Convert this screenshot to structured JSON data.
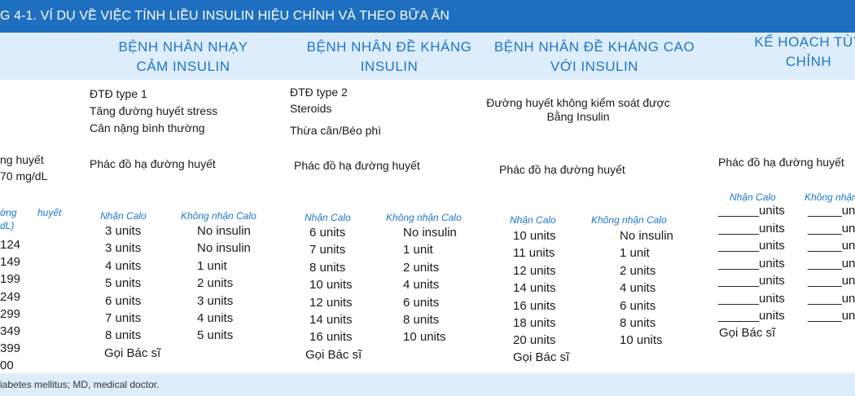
{
  "title": "G 4-1.   VÍ DỤ VỀ VIỆC TÍNH LIỀU INSULIN HIỆU CHỈNH VÀ THEO BỮA ĂN",
  "headers": {
    "sensitive": [
      "BỆNH NHÂN NHẠY",
      "CẢM INSULIN"
    ],
    "resistant": [
      "BỆNH NHÂN ĐỀ KHÁNG",
      "INSULIN"
    ],
    "very_resistant": [
      "BỆNH NHÂN ĐỀ KHÁNG CAO",
      "VỚI INSULIN"
    ],
    "custom": [
      "KẾ HOẠCH TÙY",
      "CHỈNH"
    ]
  },
  "left": {
    "target_line1": "ng huyết",
    "target_line2": "70 mg/dL",
    "range_head1": "ờng",
    "range_head1b": "huyết",
    "range_head2": "dL)",
    "ranges": [
      "124",
      "149",
      "199",
      "249",
      "299",
      "349",
      "399",
      "00"
    ]
  },
  "sensitive": {
    "criteria": [
      "ĐTĐ type 1",
      "Tăng đường huyết stress",
      "Cân nặng bình thường"
    ],
    "regimen": "Phác đồ hạ đường huyết",
    "col_calo": "Nhận Calo",
    "col_no_calo": "Không nhận Calo",
    "calo": [
      "3 units",
      "3 units",
      "4 units",
      "5 units",
      "6 units",
      "7 units",
      "8 units"
    ],
    "no_calo": [
      "No insulin",
      "No insulin",
      "1 unit",
      "2 units",
      "3 units",
      "4 units",
      "5 units"
    ],
    "call": "Gọi Bác sĩ"
  },
  "resistant": {
    "criteria": [
      "ĐTĐ type 2",
      "Steroids",
      "Thừa cân/Béo phì"
    ],
    "regimen": "Phác đồ hạ đường huyết",
    "col_calo": "Nhận Calo",
    "col_no_calo": "Không nhận Calo",
    "calo": [
      "6 units",
      "7 units",
      "8 units",
      "10 units",
      "12 units",
      "14 units",
      "16 units"
    ],
    "no_calo": [
      "No insulin",
      "1 unit",
      "2 units",
      "4 units",
      "6 units",
      "8 units",
      "10 units"
    ],
    "call": "Gọi Bác sĩ"
  },
  "very_resistant": {
    "criteria": [
      "Đường huyết không kiểm soát được",
      "Bằng Insulin"
    ],
    "regimen": "Phác đồ hạ đường huyết",
    "col_calo": "Nhận Calo",
    "col_no_calo": "Không nhận Calo",
    "calo": [
      "10 units",
      "11 units",
      "12 units",
      "14 units",
      "16 units",
      "18 units",
      "20 units"
    ],
    "no_calo": [
      "No insulin",
      "1 unit",
      "2 units",
      "4 units",
      "6 units",
      "8 units",
      "10 units"
    ],
    "call": "Gọi Bác sĩ"
  },
  "custom": {
    "regimen": "Phác đồ hạ đường huyết",
    "col_calo": "Nhận Calo",
    "col_no_calo": "Không nhận",
    "blank_rows": [
      "______units",
      "______units",
      "______units",
      "______units",
      "______units",
      "______units",
      "______units"
    ],
    "blank_rows_right": [
      "_____un",
      "_____un",
      "_____un",
      "_____un",
      "_____un",
      "_____un",
      "_____un"
    ],
    "call": "Gọi Bác sĩ"
  },
  "footer": "iabetes mellitus; MD, medical doctor.",
  "colors": {
    "title_bar": "#1f6fc0",
    "band": "#deedfb",
    "accent": "#1d76c9"
  }
}
